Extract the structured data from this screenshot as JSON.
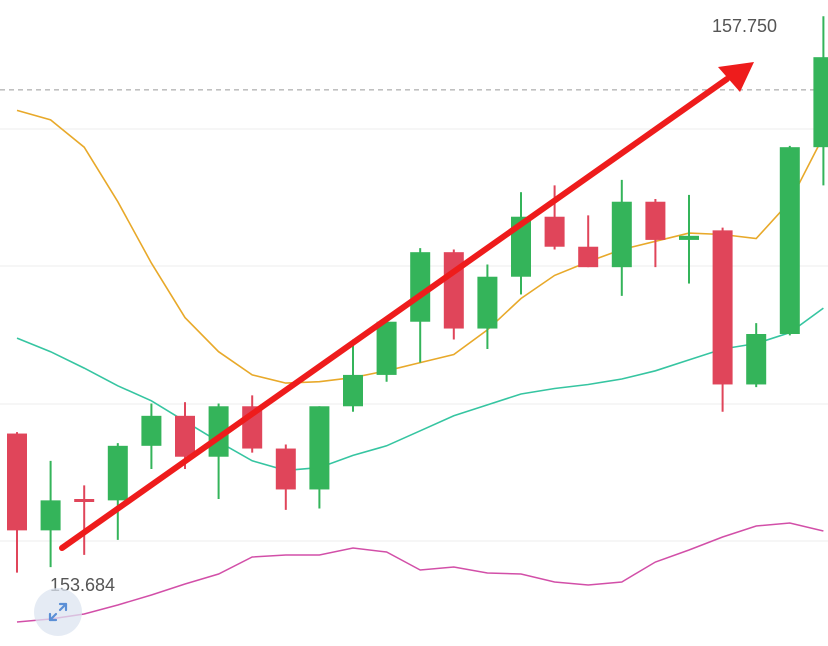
{
  "chart_data": {
    "type": "candlestick",
    "title": "",
    "xlabel": "",
    "ylabel": "",
    "ylim": [
      153.45,
      157.85
    ],
    "grid": true,
    "price_labels": {
      "high": "157.750",
      "low": "153.684"
    },
    "reference_line": 157.22,
    "candles": [
      {
        "open": 154.7,
        "close": 153.99,
        "high": 154.71,
        "low": 153.68
      },
      {
        "open": 153.99,
        "close": 154.21,
        "high": 154.5,
        "low": 153.72
      },
      {
        "open": 154.22,
        "close": 154.2,
        "high": 154.32,
        "low": 153.81
      },
      {
        "open": 154.21,
        "close": 154.61,
        "high": 154.63,
        "low": 153.92
      },
      {
        "open": 154.61,
        "close": 154.83,
        "high": 154.92,
        "low": 154.44
      },
      {
        "open": 154.83,
        "close": 154.53,
        "high": 154.93,
        "low": 154.44
      },
      {
        "open": 154.53,
        "close": 154.9,
        "high": 154.92,
        "low": 154.22
      },
      {
        "open": 154.9,
        "close": 154.59,
        "high": 154.98,
        "low": 154.56
      },
      {
        "open": 154.59,
        "close": 154.29,
        "high": 154.62,
        "low": 154.14
      },
      {
        "open": 154.29,
        "close": 154.9,
        "high": 154.9,
        "low": 154.15
      },
      {
        "open": 154.9,
        "close": 155.13,
        "high": 155.39,
        "low": 154.86
      },
      {
        "open": 155.13,
        "close": 155.52,
        "high": 155.55,
        "low": 155.08
      },
      {
        "open": 155.52,
        "close": 156.03,
        "high": 156.06,
        "low": 155.22
      },
      {
        "open": 156.03,
        "close": 155.47,
        "high": 156.05,
        "low": 155.39
      },
      {
        "open": 155.47,
        "close": 155.85,
        "high": 155.94,
        "low": 155.32
      },
      {
        "open": 155.85,
        "close": 156.29,
        "high": 156.47,
        "low": 155.72
      },
      {
        "open": 156.29,
        "close": 156.07,
        "high": 156.52,
        "low": 156.05
      },
      {
        "open": 156.07,
        "close": 155.92,
        "high": 156.3,
        "low": 155.92
      },
      {
        "open": 155.92,
        "close": 156.4,
        "high": 156.56,
        "low": 155.71
      },
      {
        "open": 156.4,
        "close": 156.12,
        "high": 156.42,
        "low": 155.92
      },
      {
        "open": 156.12,
        "close": 156.15,
        "high": 156.45,
        "low": 155.8
      },
      {
        "open": 156.19,
        "close": 155.06,
        "high": 156.21,
        "low": 154.86
      },
      {
        "open": 155.06,
        "close": 155.43,
        "high": 155.51,
        "low": 155.04
      },
      {
        "open": 155.43,
        "close": 156.8,
        "high": 156.81,
        "low": 155.42
      },
      {
        "open": 156.8,
        "close": 157.46,
        "high": 157.76,
        "low": 156.52
      }
    ],
    "moving_averages": [
      {
        "color": "#e8a92a",
        "values": [
          157.07,
          157.0,
          156.8,
          156.4,
          155.95,
          155.55,
          155.3,
          155.13,
          155.07,
          155.08,
          155.11,
          155.16,
          155.22,
          155.28,
          155.46,
          155.69,
          155.86,
          155.96,
          156.05,
          156.11,
          156.17,
          156.16,
          156.13,
          156.4,
          156.88
        ]
      },
      {
        "color": "#36c5a1",
        "values": [
          155.4,
          155.3,
          155.18,
          155.05,
          154.94,
          154.79,
          154.64,
          154.5,
          154.43,
          154.45,
          154.54,
          154.61,
          154.72,
          154.83,
          154.91,
          154.99,
          155.03,
          155.06,
          155.1,
          155.16,
          155.24,
          155.32,
          155.36,
          155.44,
          155.62
        ]
      }
    ],
    "oscillator": {
      "color": "#d24fa8",
      "values": [
        32,
        29,
        24,
        15,
        5,
        -6,
        -16,
        -33,
        -35,
        -35,
        -42,
        -38,
        -20,
        -23,
        -17,
        -16,
        -8,
        -5,
        -8,
        -28,
        -40,
        -53,
        -64,
        -67,
        -59
      ]
    }
  },
  "overlay": {
    "trend_arrow_color": "#ee1c1c"
  },
  "colors": {
    "up": "#34b45a",
    "down": "#e0455a",
    "grid": "#ededed"
  },
  "controls": {
    "expand_icon": "expand-arrows-icon"
  }
}
